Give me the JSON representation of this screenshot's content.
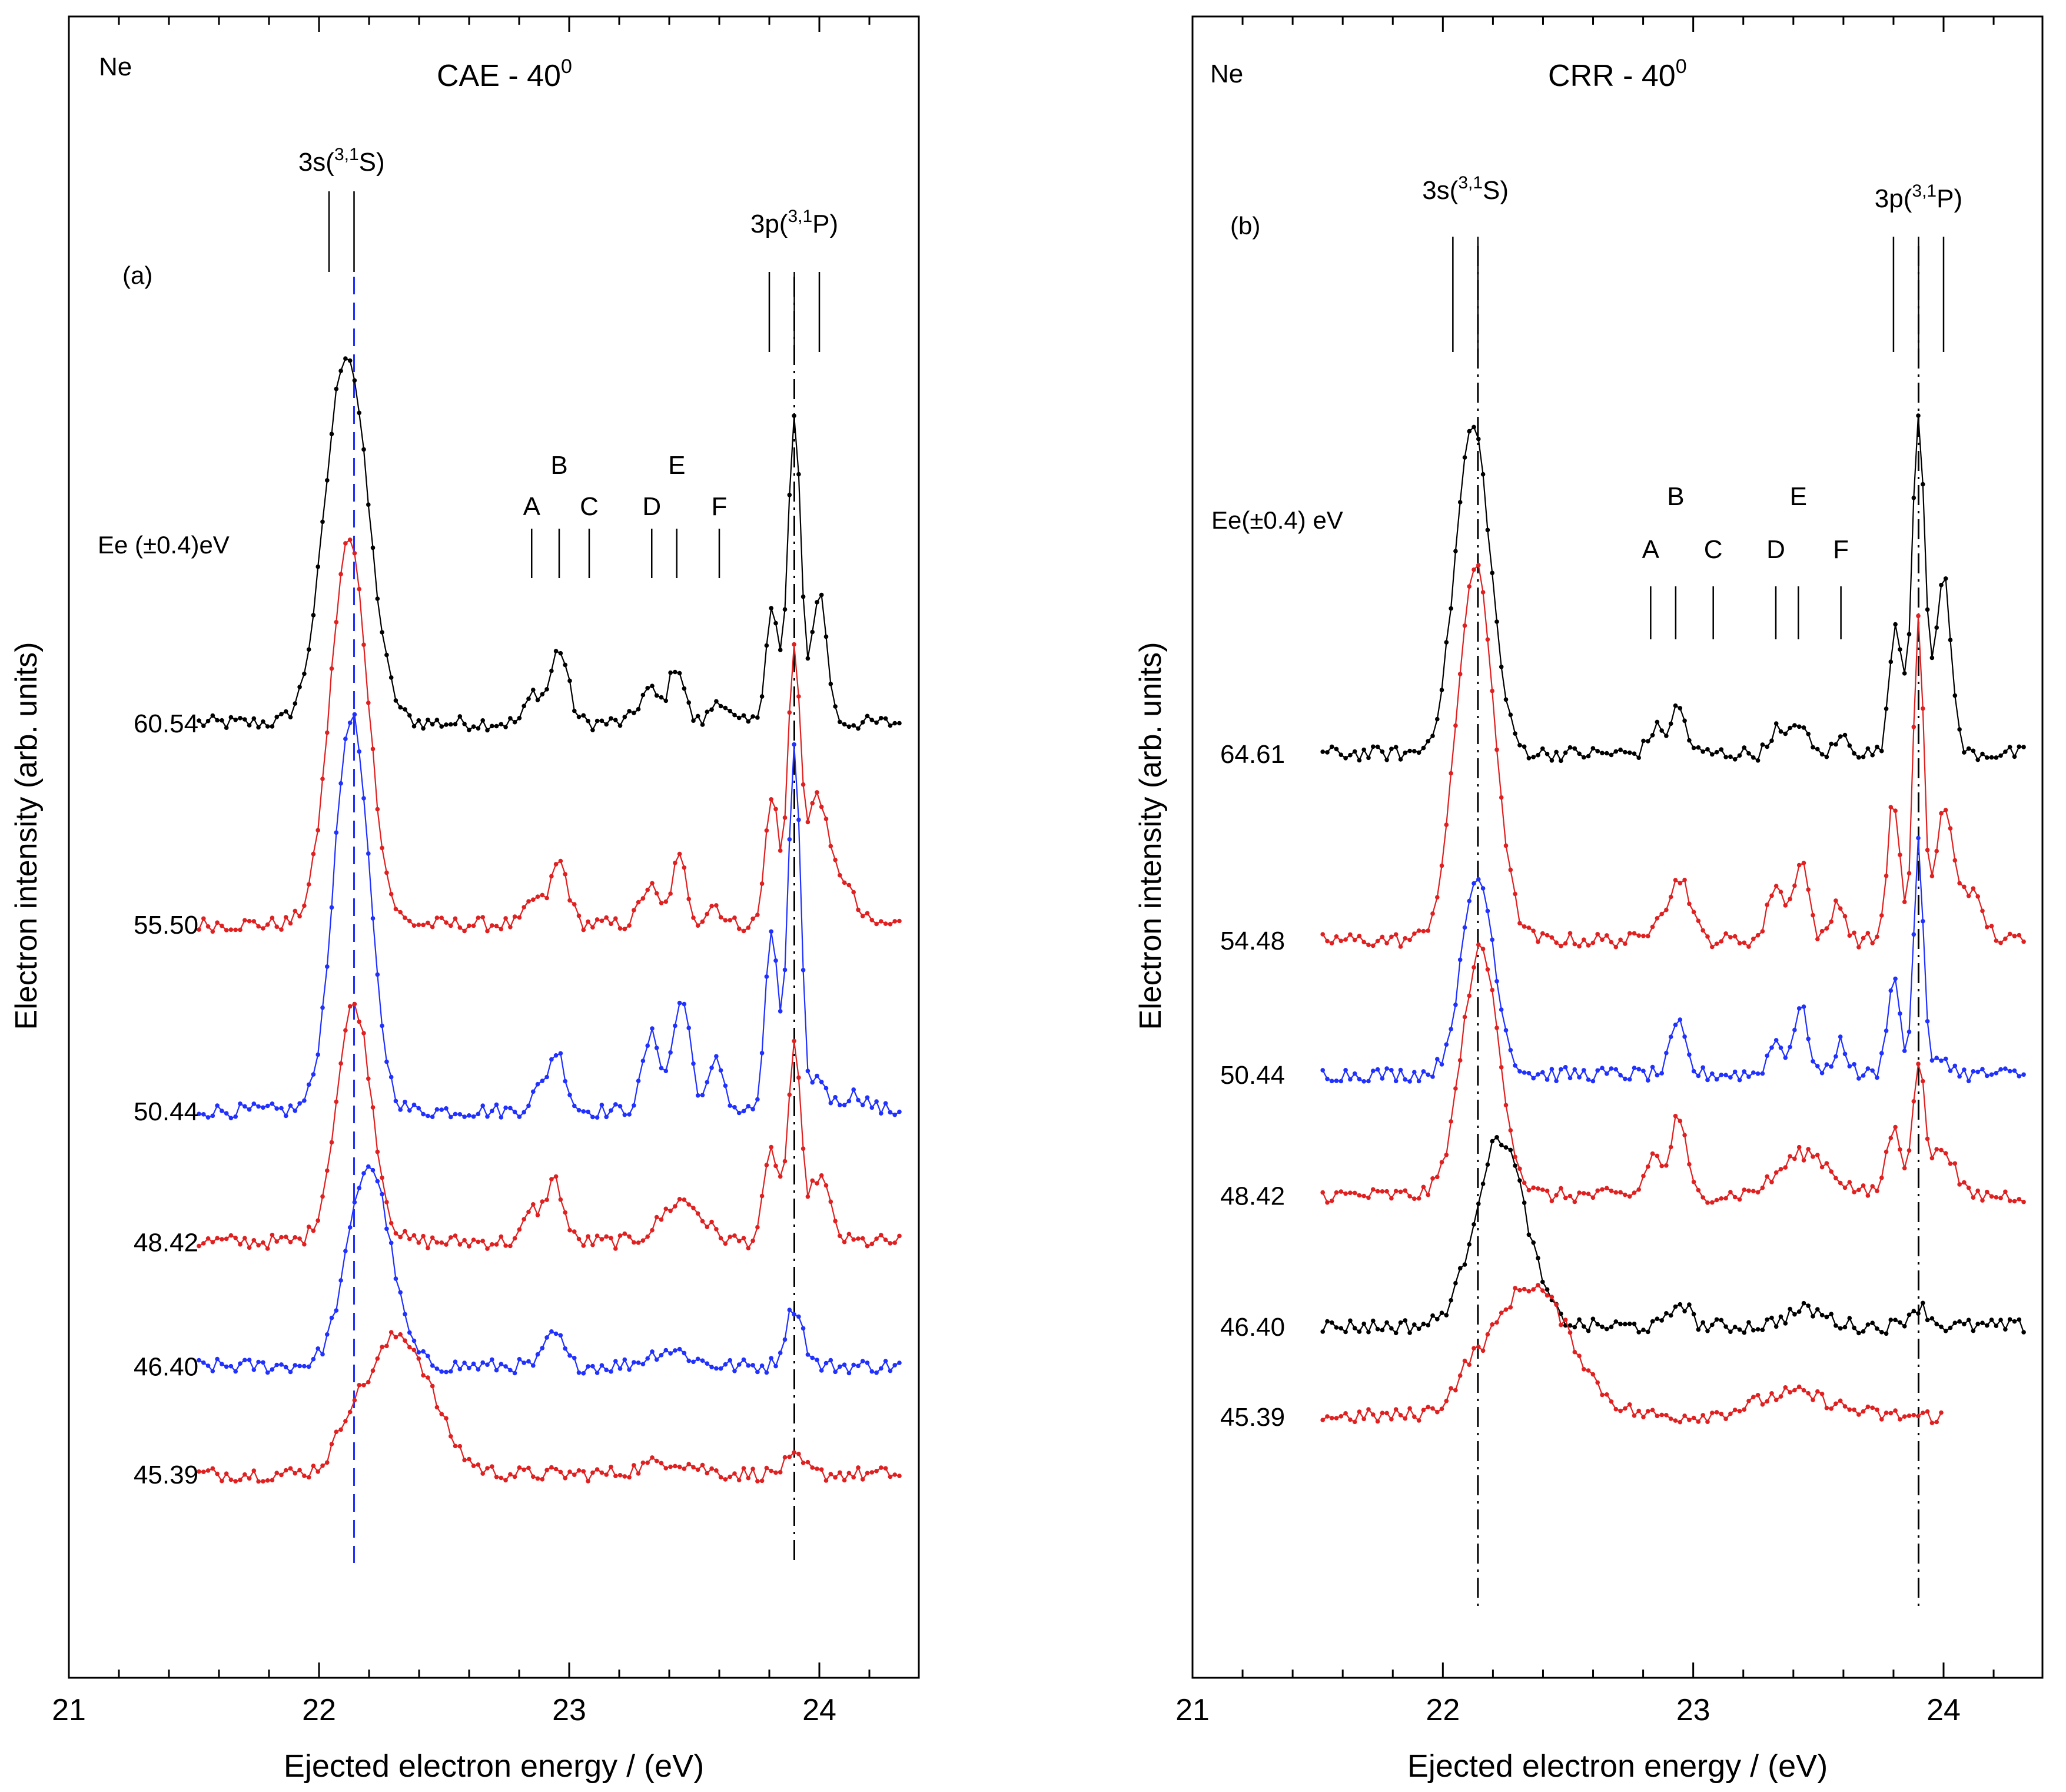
{
  "figure": {
    "shared_y_label": "Electron intensity (arb. units)",
    "shared_x_label": "Ejected electron energy / (eV)"
  },
  "chart_data": [
    {
      "type": "line",
      "panel_id": "a",
      "panel_label": "(a)",
      "element": "Ne",
      "title": "CAE - 40",
      "title_sup": "0",
      "xlabel": "Ejected electron energy / (eV)",
      "ylabel": "Electron intensity (arb. units)",
      "xlim": [
        21.0,
        24.4
      ],
      "xticks": [
        21,
        22,
        23,
        24
      ],
      "xtick_labels": [
        "21",
        "22",
        "23",
        "24"
      ],
      "y_units": "arb. units",
      "energy_header": "Ee (±0.4)eV",
      "reference_lines": [
        {
          "x": 22.14,
          "style": "dashed",
          "color": "#2030ff"
        },
        {
          "x": 23.9,
          "style": "dashdot",
          "color": "#000000"
        }
      ],
      "state_markers": [
        {
          "label": "3s(",
          "sup": "3,1",
          "tail": "S)",
          "x": [
            22.04,
            22.14
          ]
        },
        {
          "label": "3p(",
          "sup": "3,1",
          "tail": "P)",
          "x": [
            23.8,
            23.9,
            24.0
          ]
        }
      ],
      "resonance_markers": [
        {
          "label": "A",
          "x": 22.85
        },
        {
          "label": "B",
          "x": 22.96
        },
        {
          "label": "C",
          "x": 23.08
        },
        {
          "label": "D",
          "x": 23.33
        },
        {
          "label": "E",
          "x": 23.43
        },
        {
          "label": "F",
          "x": 23.6
        }
      ],
      "series": [
        {
          "name": "60.54",
          "color": "#000000",
          "baseline": 0.0,
          "amplitude": 1.0,
          "peaks": [
            {
              "x": 22.11,
              "h": 22.6,
              "w": 0.085
            },
            {
              "x": 22.86,
              "h": 1.8,
              "w": 0.03
            },
            {
              "x": 22.96,
              "h": 4.5,
              "w": 0.035
            },
            {
              "x": 23.32,
              "h": 2.0,
              "w": 0.04
            },
            {
              "x": 23.43,
              "h": 3.5,
              "w": 0.03
            },
            {
              "x": 23.6,
              "h": 1.5,
              "w": 0.03
            },
            {
              "x": 23.81,
              "h": 7.0,
              "w": 0.025
            },
            {
              "x": 23.9,
              "h": 18.6,
              "w": 0.025
            },
            {
              "x": 24.0,
              "h": 8.0,
              "w": 0.03
            }
          ]
        },
        {
          "name": "55.50",
          "color": "#e02020",
          "baseline": 12.3,
          "amplitude": 1.0,
          "peaks": [
            {
              "x": 22.12,
              "h": 23.5,
              "w": 0.075
            },
            {
              "x": 22.86,
              "h": 1.5,
              "w": 0.03
            },
            {
              "x": 22.96,
              "h": 3.8,
              "w": 0.035
            },
            {
              "x": 23.32,
              "h": 2.3,
              "w": 0.035
            },
            {
              "x": 23.44,
              "h": 4.0,
              "w": 0.03
            },
            {
              "x": 23.58,
              "h": 1.2,
              "w": 0.03
            },
            {
              "x": 23.81,
              "h": 8.0,
              "w": 0.025
            },
            {
              "x": 23.9,
              "h": 17.0,
              "w": 0.025
            },
            {
              "x": 23.99,
              "h": 7.5,
              "w": 0.035
            },
            {
              "x": 24.08,
              "h": 3.0,
              "w": 0.05
            }
          ]
        },
        {
          "name": "50.44",
          "color": "#2030ff",
          "baseline": 23.7,
          "amplitude": 1.0,
          "peaks": [
            {
              "x": 22.13,
              "h": 24.2,
              "w": 0.07
            },
            {
              "x": 22.87,
              "h": 1.0,
              "w": 0.03
            },
            {
              "x": 22.95,
              "h": 3.6,
              "w": 0.035
            },
            {
              "x": 23.33,
              "h": 4.6,
              "w": 0.035
            },
            {
              "x": 23.45,
              "h": 6.8,
              "w": 0.035
            },
            {
              "x": 23.59,
              "h": 3.0,
              "w": 0.03
            },
            {
              "x": 23.81,
              "h": 11.0,
              "w": 0.025
            },
            {
              "x": 23.9,
              "h": 22.0,
              "w": 0.025
            },
            {
              "x": 24.0,
              "h": 2.0,
              "w": 0.03
            },
            {
              "x": 24.14,
              "h": 1.0,
              "w": 0.05
            }
          ]
        },
        {
          "name": "48.42",
          "color": "#e02020",
          "baseline": 31.7,
          "amplitude": 1.0,
          "peaks": [
            {
              "x": 22.14,
              "h": 14.5,
              "w": 0.07
            },
            {
              "x": 22.85,
              "h": 1.8,
              "w": 0.03
            },
            {
              "x": 22.94,
              "h": 3.8,
              "w": 0.035
            },
            {
              "x": 23.45,
              "h": 2.5,
              "w": 0.08
            },
            {
              "x": 23.81,
              "h": 5.5,
              "w": 0.03
            },
            {
              "x": 23.9,
              "h": 11.6,
              "w": 0.025
            },
            {
              "x": 24.0,
              "h": 4.0,
              "w": 0.04
            }
          ]
        },
        {
          "name": "46.40",
          "color": "#2030ff",
          "baseline": 39.3,
          "amplitude": 1.0,
          "peaks": [
            {
              "x": 22.2,
              "h": 12.3,
              "w": 0.085
            },
            {
              "x": 22.94,
              "h": 2.0,
              "w": 0.035
            },
            {
              "x": 23.4,
              "h": 1.0,
              "w": 0.08
            },
            {
              "x": 23.9,
              "h": 3.6,
              "w": 0.035
            }
          ]
        },
        {
          "name": "45.39",
          "color": "#e02020",
          "baseline": 45.9,
          "amplitude": 1.0,
          "peaks": [
            {
              "x": 22.32,
              "h": 8.5,
              "w": 0.13
            },
            {
              "x": 22.12,
              "h": 1.5,
              "w": 0.05
            },
            {
              "x": 23.4,
              "h": 0.8,
              "w": 0.1
            },
            {
              "x": 23.9,
              "h": 0.9,
              "w": 0.04
            }
          ]
        }
      ]
    },
    {
      "type": "line",
      "panel_id": "b",
      "panel_label": "(b)",
      "element": "Ne",
      "title": "CRR - 40",
      "title_sup": "0",
      "xlabel": "Ejected electron energy / (eV)",
      "ylabel": "Electron intensity (arb. units)",
      "xlim": [
        21.0,
        24.4
      ],
      "xticks": [
        21,
        22,
        23,
        24
      ],
      "xtick_labels": [
        "21",
        "22",
        "23",
        "24"
      ],
      "y_units": "arb. units",
      "energy_header": "Ee(±0.4) eV",
      "reference_lines": [
        {
          "x": 22.14,
          "style": "dashdot",
          "color": "#000000"
        },
        {
          "x": 23.9,
          "style": "dashdot",
          "color": "#000000"
        }
      ],
      "state_markers": [
        {
          "label": "3s(",
          "sup": "3,1",
          "tail": "S)",
          "x": [
            22.04,
            22.14
          ]
        },
        {
          "label": "3p(",
          "sup": "3,1",
          "tail": "P)",
          "x": [
            23.8,
            23.9,
            24.0
          ]
        }
      ],
      "resonance_markers": [
        {
          "label": "A",
          "x": 22.83
        },
        {
          "label": "B",
          "x": 22.93
        },
        {
          "label": "C",
          "x": 23.08
        },
        {
          "label": "D",
          "x": 23.33
        },
        {
          "label": "E",
          "x": 23.42
        },
        {
          "label": "F",
          "x": 23.59
        }
      ],
      "series": [
        {
          "name": "64.61",
          "color": "#000000",
          "baseline": 0.0,
          "amplitude": 1.0,
          "peaks": [
            {
              "x": 22.12,
              "h": 20.0,
              "w": 0.07
            },
            {
              "x": 22.85,
              "h": 1.5,
              "w": 0.03
            },
            {
              "x": 22.94,
              "h": 2.8,
              "w": 0.03
            },
            {
              "x": 23.33,
              "h": 1.5,
              "w": 0.025
            },
            {
              "x": 23.42,
              "h": 2.0,
              "w": 0.03
            },
            {
              "x": 23.6,
              "h": 1.0,
              "w": 0.03
            },
            {
              "x": 23.81,
              "h": 8.0,
              "w": 0.025
            },
            {
              "x": 23.9,
              "h": 21.0,
              "w": 0.025
            },
            {
              "x": 24.0,
              "h": 11.0,
              "w": 0.03
            }
          ]
        },
        {
          "name": "54.48",
          "color": "#e02020",
          "baseline": 11.4,
          "amplitude": 1.0,
          "peaks": [
            {
              "x": 22.13,
              "h": 22.8,
              "w": 0.075
            },
            {
              "x": 22.86,
              "h": 1.5,
              "w": 0.03
            },
            {
              "x": 22.95,
              "h": 3.8,
              "w": 0.04
            },
            {
              "x": 23.33,
              "h": 3.5,
              "w": 0.03
            },
            {
              "x": 23.43,
              "h": 5.0,
              "w": 0.03
            },
            {
              "x": 23.58,
              "h": 2.5,
              "w": 0.025
            },
            {
              "x": 23.8,
              "h": 8.5,
              "w": 0.025
            },
            {
              "x": 23.9,
              "h": 20.0,
              "w": 0.02
            },
            {
              "x": 24.0,
              "h": 7.5,
              "w": 0.035
            },
            {
              "x": 24.1,
              "h": 3.0,
              "w": 0.05
            }
          ]
        },
        {
          "name": "50.44",
          "color": "#2030ff",
          "baseline": 19.6,
          "amplitude": 1.0,
          "peaks": [
            {
              "x": 22.14,
              "h": 12.0,
              "w": 0.065
            },
            {
              "x": 22.94,
              "h": 3.0,
              "w": 0.03
            },
            {
              "x": 23.33,
              "h": 2.0,
              "w": 0.03
            },
            {
              "x": 23.43,
              "h": 4.0,
              "w": 0.03
            },
            {
              "x": 23.59,
              "h": 2.0,
              "w": 0.025
            },
            {
              "x": 23.8,
              "h": 6.0,
              "w": 0.025
            },
            {
              "x": 23.9,
              "h": 14.0,
              "w": 0.02
            },
            {
              "x": 24.0,
              "h": 1.0,
              "w": 0.03
            }
          ]
        },
        {
          "name": "48.42",
          "color": "#e02020",
          "baseline": 27.0,
          "amplitude": 1.0,
          "peaks": [
            {
              "x": 22.15,
              "h": 15.0,
              "w": 0.075
            },
            {
              "x": 22.84,
              "h": 2.5,
              "w": 0.03
            },
            {
              "x": 22.94,
              "h": 4.8,
              "w": 0.03
            },
            {
              "x": 23.45,
              "h": 2.6,
              "w": 0.1
            },
            {
              "x": 23.8,
              "h": 4.0,
              "w": 0.03
            },
            {
              "x": 23.9,
              "h": 8.0,
              "w": 0.025
            },
            {
              "x": 24.0,
              "h": 3.0,
              "w": 0.04
            }
          ]
        },
        {
          "name": "46.40",
          "color": "#000000",
          "baseline": 35.0,
          "amplitude": 1.0,
          "peaks": [
            {
              "x": 22.23,
              "h": 11.5,
              "w": 0.1
            },
            {
              "x": 22.95,
              "h": 1.5,
              "w": 0.035
            },
            {
              "x": 23.45,
              "h": 1.0,
              "w": 0.08
            },
            {
              "x": 23.9,
              "h": 1.2,
              "w": 0.04
            }
          ]
        },
        {
          "name": "45.39",
          "color": "#e02020",
          "baseline": 40.5,
          "amplitude": 1.0,
          "peaks": [
            {
              "x": 22.35,
              "h": 8.0,
              "w": 0.16
            },
            {
              "x": 22.1,
              "h": 1.0,
              "w": 0.05
            },
            {
              "x": 23.4,
              "h": 1.4,
              "w": 0.15
            }
          ]
        }
      ]
    }
  ]
}
